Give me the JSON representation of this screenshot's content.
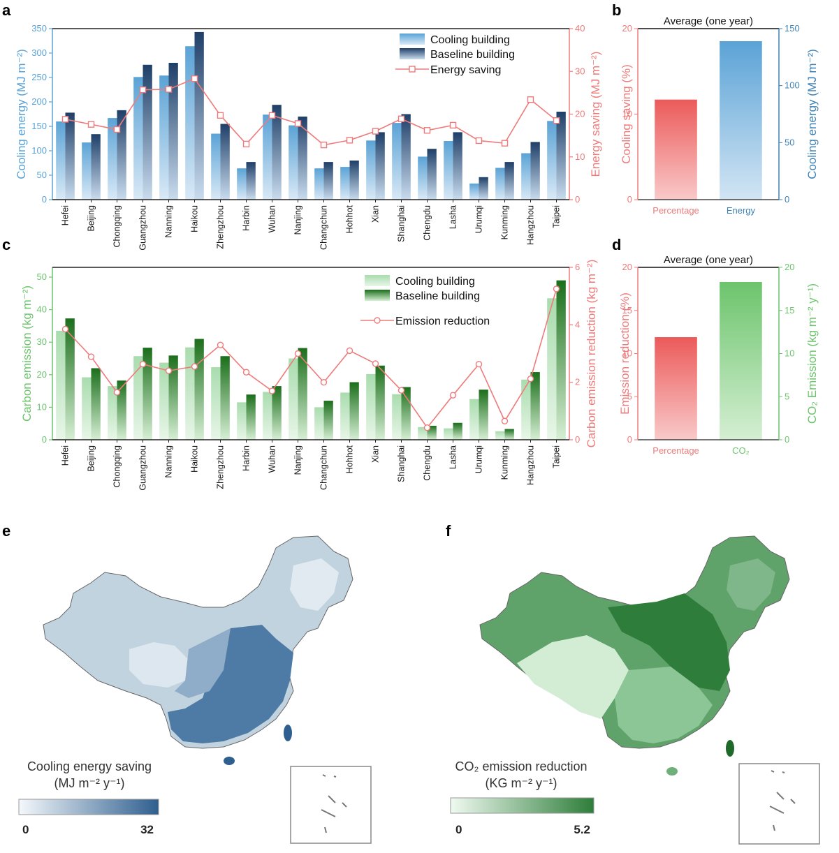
{
  "colors": {
    "energy_blue": "#5ba3d6",
    "energy_blue_dark": "#1f3f68",
    "saving_red": "#ee7b7b",
    "emission_green": "#6cc46c",
    "emission_green_dark": "#1b6e1b",
    "axis_blue_text": "#3e82b5",
    "map_blue": "#2f5f8f",
    "map_green": "#2e7d3a"
  },
  "panel_letters": {
    "a": "a",
    "b": "b",
    "c": "c",
    "d": "d",
    "e": "e",
    "f": "f"
  },
  "chart_data": [
    {
      "id": "a",
      "type": "bar",
      "categories": [
        "Hefei",
        "Beijing",
        "Chongqing",
        "Guangzhou",
        "Nanning",
        "Haikou",
        "Zhengzhou",
        "Harbin",
        "Wuhan",
        "Nanjing",
        "Changchun",
        "Hohhot",
        "Xian",
        "Shanghai",
        "Chengdu",
        "Lasha",
        "Urumqi",
        "Kunming",
        "Hangzhou",
        "Taipei"
      ],
      "series": [
        {
          "name": "Cooling building",
          "kind": "bar",
          "axis": "left",
          "values": [
            160,
            117,
            167,
            251,
            254,
            314,
            135,
            64,
            174,
            152,
            64,
            67,
            121,
            157,
            88,
            120,
            33,
            65,
            95,
            161
          ]
        },
        {
          "name": "Baseline building",
          "kind": "bar",
          "axis": "left",
          "values": [
            178,
            134,
            183,
            276,
            280,
            343,
            155,
            77,
            194,
            170,
            77,
            80,
            138,
            175,
            104,
            138,
            46,
            77,
            118,
            180
          ]
        },
        {
          "name": "Energy saving",
          "kind": "line",
          "axis": "right",
          "values": [
            18.8,
            17.6,
            16.4,
            25.7,
            25.8,
            28.3,
            19.7,
            13,
            19.7,
            17.8,
            12.8,
            13.9,
            16,
            18.9,
            16.2,
            17.4,
            13.8,
            13.2,
            23.4,
            18.5
          ]
        }
      ],
      "ylabel": "Cooling energy (MJ m⁻²)",
      "y2label": "Energy saving (MJ m⁻²)",
      "ylim": [
        0,
        350
      ],
      "yticks": [
        "0",
        "50",
        "100",
        "150",
        "200",
        "250",
        "300",
        "350"
      ],
      "y2lim": [
        0,
        40
      ],
      "y2ticks": [
        "0",
        "10",
        "20",
        "30",
        "40"
      ],
      "legend": [
        "Cooling building",
        "Baseline building",
        "Energy saving"
      ]
    },
    {
      "id": "b",
      "type": "bar",
      "title": "Average (one year)",
      "categories": [
        "Percentage",
        "Energy"
      ],
      "series": [
        {
          "name": "Percentage",
          "axis": "left",
          "value": 11.7
        },
        {
          "name": "Energy",
          "axis": "right",
          "value": 139
        }
      ],
      "ylabel": "Cooling saving (%)",
      "y2label": "Cooling energy (MJ m⁻²)",
      "ylim": [
        0,
        20
      ],
      "yticks": [
        "0",
        "10",
        "20"
      ],
      "y2lim": [
        0,
        150
      ],
      "y2ticks": [
        "0",
        "50",
        "100",
        "150"
      ]
    },
    {
      "id": "c",
      "type": "bar",
      "categories": [
        "Hefei",
        "Beijing",
        "Chongqing",
        "Guangzhou",
        "Nanning",
        "Haikou",
        "Zhengzhou",
        "Harbin",
        "Wuhan",
        "Nanjing",
        "Changchun",
        "Hohhot",
        "Xian",
        "Shanghai",
        "Chengdu",
        "Lasha",
        "Urumqi",
        "Kunming",
        "Hangzhou",
        "Taipei"
      ],
      "series": [
        {
          "name": "Cooling building",
          "kind": "bar",
          "axis": "left",
          "values": [
            33.5,
            19.2,
            16.5,
            25.7,
            23.7,
            28.4,
            22.3,
            11.5,
            14.7,
            25,
            10,
            14.5,
            20.2,
            14,
            3.9,
            3.5,
            12.5,
            2.6,
            18.5,
            43.5
          ]
        },
        {
          "name": "Baseline building",
          "kind": "bar",
          "axis": "left",
          "values": [
            37.3,
            22,
            18.2,
            28.3,
            25.9,
            31,
            25.7,
            13.9,
            16.5,
            28.2,
            12,
            17.7,
            22.8,
            16.2,
            4.3,
            5.2,
            15.4,
            3.3,
            20.8,
            49
          ]
        },
        {
          "name": "Emission reduction",
          "kind": "line",
          "axis": "right",
          "values": [
            3.85,
            2.89,
            1.65,
            2.63,
            2.4,
            2.55,
            3.3,
            2.35,
            1.7,
            3.0,
            2.0,
            3.1,
            2.65,
            1.72,
            0.42,
            1.55,
            2.63,
            0.65,
            2.12,
            5.25
          ]
        }
      ],
      "ylabel": "Carbon emission (kg m⁻²)",
      "y2label": "Carbon emission reduction (kg m⁻²)",
      "ylim": [
        0,
        53
      ],
      "yticks": [
        "0",
        "10",
        "20",
        "30",
        "40",
        "50"
      ],
      "y2lim": [
        0,
        6
      ],
      "y2ticks": [
        "0",
        "2",
        "4",
        "6"
      ],
      "legend": [
        "Cooling building",
        "Baseline building",
        "Emission reduction"
      ]
    },
    {
      "id": "d",
      "type": "bar",
      "title": "Average (one year)",
      "categories": [
        "Percentage",
        "CO₂"
      ],
      "series": [
        {
          "name": "Percentage",
          "axis": "left",
          "value": 11.9
        },
        {
          "name": "CO2",
          "axis": "right",
          "value": 18.3
        }
      ],
      "ylabel": "Emission reduction (%)",
      "y2label": "CO₂ Emission (kg m⁻² y⁻¹)",
      "ylim": [
        0,
        20
      ],
      "yticks": [
        "0",
        "5",
        "10",
        "15",
        "20"
      ],
      "y2lim": [
        0,
        20
      ],
      "y2ticks": [
        "0",
        "5",
        "10",
        "15",
        "20"
      ]
    }
  ],
  "maps": {
    "e": {
      "title_line1": "Cooling energy saving",
      "title_line2": "(MJ m⁻² y⁻¹)",
      "cb_min": "0",
      "cb_max": "32"
    },
    "f": {
      "title_line1": "CO₂ emission reduction",
      "title_line2": "(KG m⁻² y⁻¹)",
      "cb_min": "0",
      "cb_max": "5.2"
    }
  }
}
